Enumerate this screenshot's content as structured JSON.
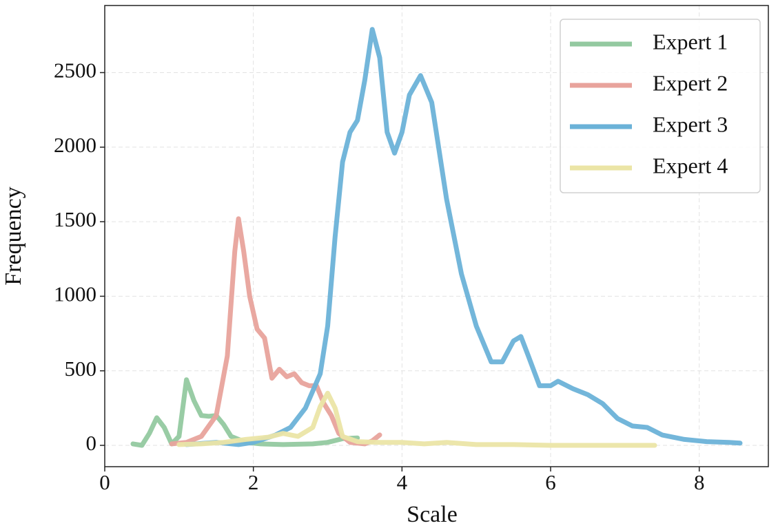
{
  "chart_data": {
    "type": "line",
    "x_label": "Scale",
    "y_label": "Frequency",
    "xlim": [
      0,
      8.93
    ],
    "ylim": [
      -143,
      2950
    ],
    "xticks": [
      0,
      2,
      4,
      6,
      8
    ],
    "yticks": [
      0,
      500,
      1000,
      1500,
      2000,
      2500
    ],
    "grid": true,
    "legend": "upper right",
    "series": [
      {
        "name": "Expert 1",
        "color": "#93c9a0",
        "x": [
          0.38,
          0.5,
          0.6,
          0.7,
          0.8,
          0.9,
          1.0,
          1.1,
          1.2,
          1.3,
          1.4,
          1.5,
          1.6,
          1.7,
          1.9,
          2.1,
          2.4,
          2.8,
          3.0,
          3.2,
          3.4
        ],
        "values": [
          10,
          0,
          80,
          185,
          120,
          10,
          60,
          440,
          300,
          200,
          195,
          200,
          140,
          60,
          20,
          10,
          5,
          10,
          20,
          45,
          50
        ]
      },
      {
        "name": "Expert 2",
        "color": "#e8a39c",
        "x": [
          0.9,
          1.1,
          1.3,
          1.5,
          1.65,
          1.75,
          1.8,
          1.87,
          1.95,
          2.05,
          2.15,
          2.25,
          2.35,
          2.45,
          2.55,
          2.65,
          2.75,
          2.85,
          2.95,
          3.05,
          3.15,
          3.3,
          3.5,
          3.6,
          3.7
        ],
        "values": [
          10,
          20,
          60,
          200,
          600,
          1300,
          1520,
          1300,
          1000,
          780,
          720,
          450,
          510,
          460,
          480,
          420,
          400,
          400,
          280,
          200,
          80,
          20,
          10,
          30,
          70
        ]
      },
      {
        "name": "Expert 3",
        "color": "#6bb2d8",
        "x": [
          1.1,
          1.5,
          1.8,
          2.0,
          2.3,
          2.5,
          2.7,
          2.9,
          3.0,
          3.1,
          3.2,
          3.3,
          3.4,
          3.5,
          3.6,
          3.7,
          3.8,
          3.9,
          4.0,
          4.1,
          4.25,
          4.4,
          4.6,
          4.8,
          5.0,
          5.2,
          5.35,
          5.5,
          5.6,
          5.7,
          5.85,
          6.0,
          6.1,
          6.3,
          6.5,
          6.7,
          6.9,
          7.1,
          7.3,
          7.5,
          7.8,
          8.1,
          8.4,
          8.55
        ],
        "values": [
          5,
          20,
          5,
          20,
          70,
          120,
          250,
          480,
          800,
          1400,
          1900,
          2100,
          2180,
          2450,
          2790,
          2600,
          2100,
          1960,
          2100,
          2350,
          2480,
          2300,
          1650,
          1150,
          800,
          560,
          560,
          700,
          730,
          600,
          400,
          400,
          430,
          380,
          340,
          280,
          180,
          130,
          120,
          70,
          40,
          25,
          20,
          15
        ]
      },
      {
        "name": "Expert 4",
        "color": "#ebe5a6",
        "x": [
          1.0,
          1.3,
          1.6,
          1.9,
          2.2,
          2.4,
          2.6,
          2.8,
          2.9,
          3.0,
          3.1,
          3.2,
          3.4,
          3.7,
          4.0,
          4.3,
          4.6,
          5.0,
          5.5,
          6.0,
          7.0,
          7.4
        ],
        "values": [
          5,
          10,
          20,
          40,
          55,
          80,
          60,
          120,
          260,
          350,
          250,
          60,
          25,
          20,
          20,
          10,
          20,
          5,
          5,
          0,
          0,
          0
        ]
      }
    ]
  }
}
